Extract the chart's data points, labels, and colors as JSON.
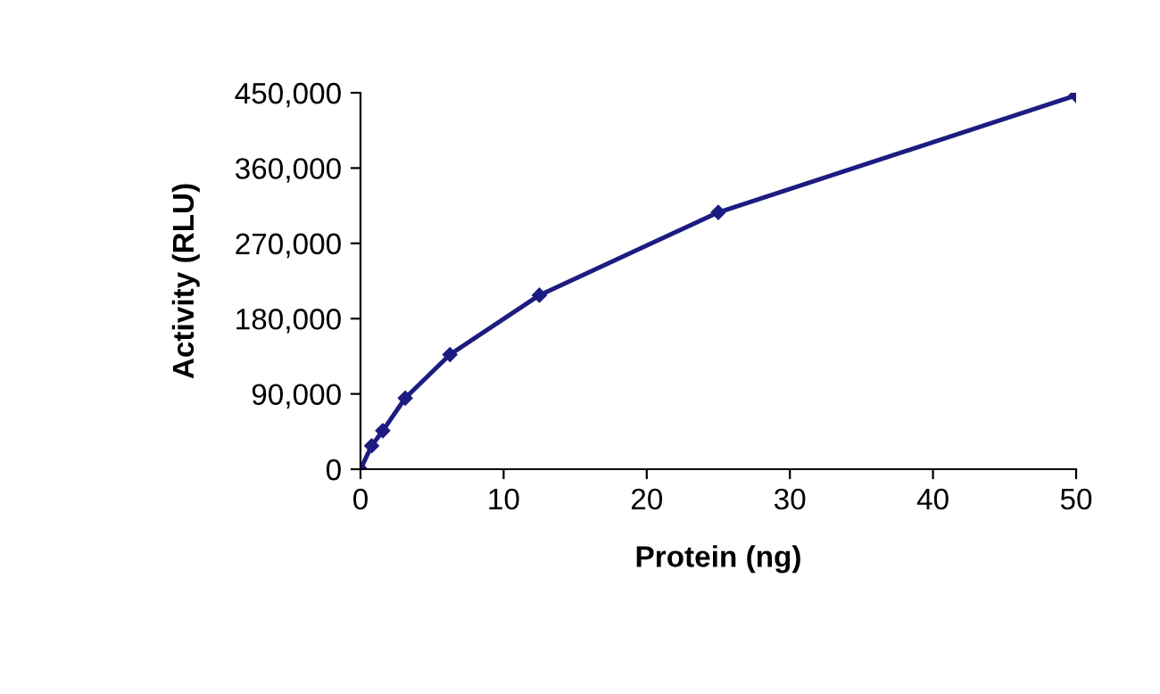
{
  "chart_data": {
    "type": "line",
    "xlabel": "Protein (ng)",
    "ylabel": "Activity (RLU)",
    "x": [
      0,
      0.78,
      1.56,
      3.125,
      6.25,
      12.5,
      25,
      50
    ],
    "series": [
      {
        "color": "#1c1c80",
        "values": [
          0,
          28000,
          46000,
          85000,
          137000,
          208000,
          307000,
          447000
        ]
      }
    ],
    "xlim": [
      0,
      50
    ],
    "xticks": [
      0,
      10,
      20,
      30,
      40,
      50
    ],
    "ylim": [
      0,
      450000
    ],
    "yticks": [
      {
        "value": 0,
        "label": "0"
      },
      {
        "value": 90000,
        "label": "90,000"
      },
      {
        "value": 180000,
        "label": "180,000"
      },
      {
        "value": 270000,
        "label": "270,000"
      },
      {
        "value": 360000,
        "label": "360,000"
      },
      {
        "value": 450000,
        "label": "450,000"
      }
    ],
    "grid": false,
    "legend": false,
    "marker": "diamond",
    "line_style": "solid"
  }
}
